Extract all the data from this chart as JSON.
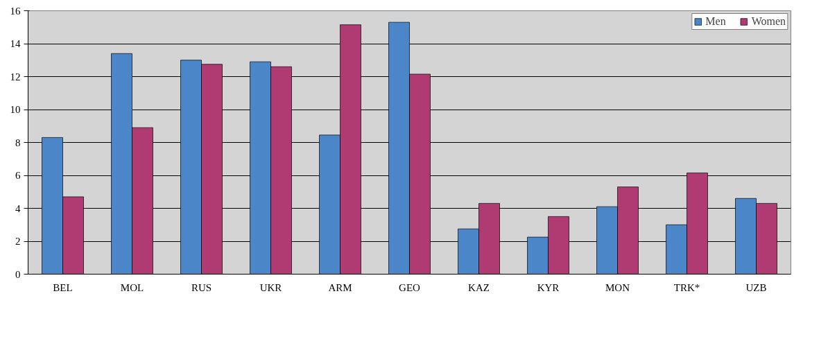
{
  "chart_data": {
    "type": "bar",
    "categories": [
      "BEL",
      "MOL",
      "RUS",
      "UKR",
      "ARM",
      "GEO",
      "KAZ",
      "KYR",
      "MON",
      "TRK*",
      "UZB"
    ],
    "series": [
      {
        "name": "Men",
        "color": "#4a86c8",
        "values": [
          8.3,
          13.4,
          13.0,
          12.9,
          8.45,
          15.3,
          2.75,
          2.25,
          4.1,
          3.0,
          4.6
        ]
      },
      {
        "name": "Women",
        "color": "#b03a72",
        "values": [
          4.7,
          8.9,
          12.75,
          12.6,
          15.15,
          12.15,
          4.3,
          3.5,
          5.3,
          6.15,
          4.3
        ]
      }
    ],
    "ylim": [
      0,
      16
    ],
    "yticks": [
      0,
      2,
      4,
      6,
      8,
      10,
      12,
      14,
      16
    ],
    "grid": "y",
    "legend": "top right"
  }
}
